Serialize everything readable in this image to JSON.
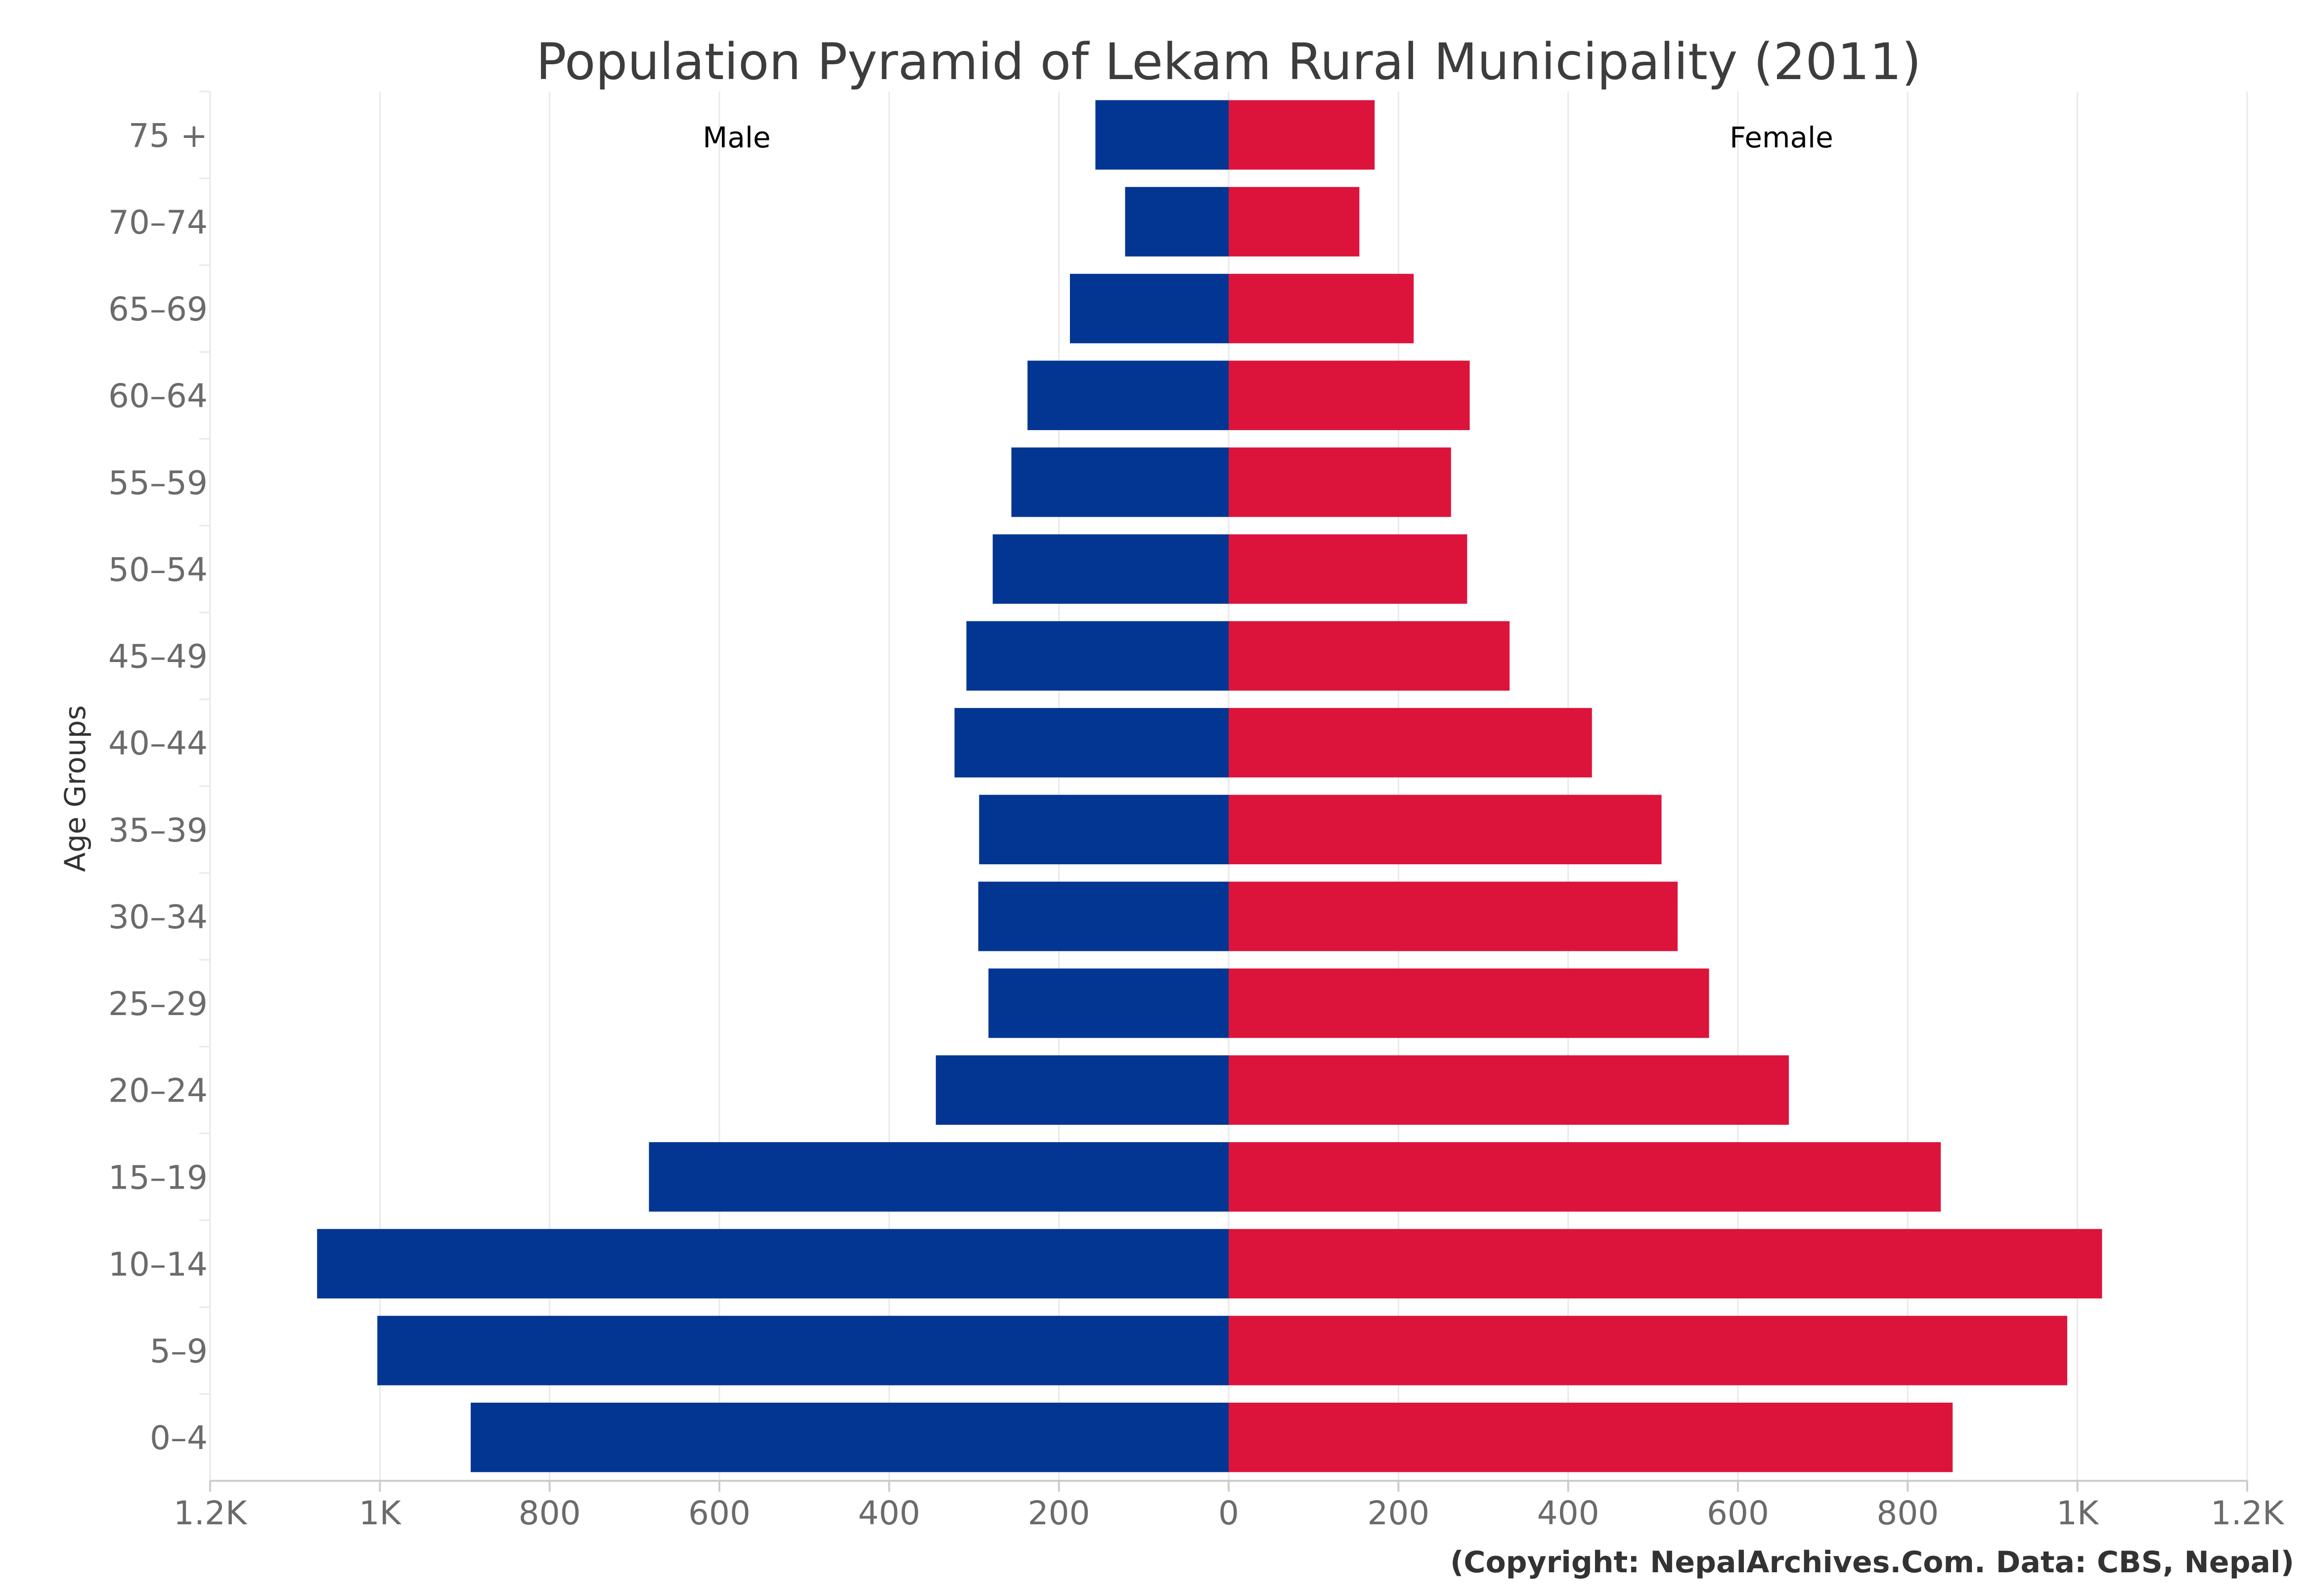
{
  "chart_data": {
    "type": "bar",
    "orientation": "horizontal-pyramid",
    "title": "Population Pyramid of Lekam Rural Municipality (2011)",
    "ylabel": "Age Groups",
    "xlabel": "",
    "categories": [
      "75 +",
      "70-74",
      "65-69",
      "60-64",
      "55-59",
      "50-54",
      "45-49",
      "40-44",
      "35-39",
      "30-34",
      "25-29",
      "20-24",
      "15-19",
      "10-14",
      "5-9",
      "0-4"
    ],
    "series": [
      {
        "name": "Male",
        "color": "#023692",
        "values": [
          157,
          122,
          187,
          237,
          256,
          278,
          309,
          323,
          294,
          295,
          283,
          345,
          683,
          1074,
          1003,
          893
        ]
      },
      {
        "name": "Female",
        "color": "#dc143c",
        "values": [
          172,
          154,
          218,
          284,
          262,
          281,
          331,
          428,
          510,
          529,
          566,
          660,
          839,
          1029,
          988,
          853
        ]
      }
    ],
    "xlim": [
      -1200,
      1200
    ],
    "x_ticks": [
      -1200,
      -1000,
      -800,
      -600,
      -400,
      -200,
      0,
      200,
      400,
      600,
      800,
      1000,
      1200
    ],
    "x_tick_labels": [
      "1.2K",
      "1K",
      "800",
      "600",
      "400",
      "200",
      "0",
      "200",
      "400",
      "600",
      "800",
      "1K",
      "1.2K"
    ],
    "grid": true,
    "legend": "none",
    "annotations": {
      "male_label": "Male",
      "female_label": "Female",
      "credit": "(Copyright: NepalArchives.Com. Data: CBS, Nepal)"
    }
  }
}
